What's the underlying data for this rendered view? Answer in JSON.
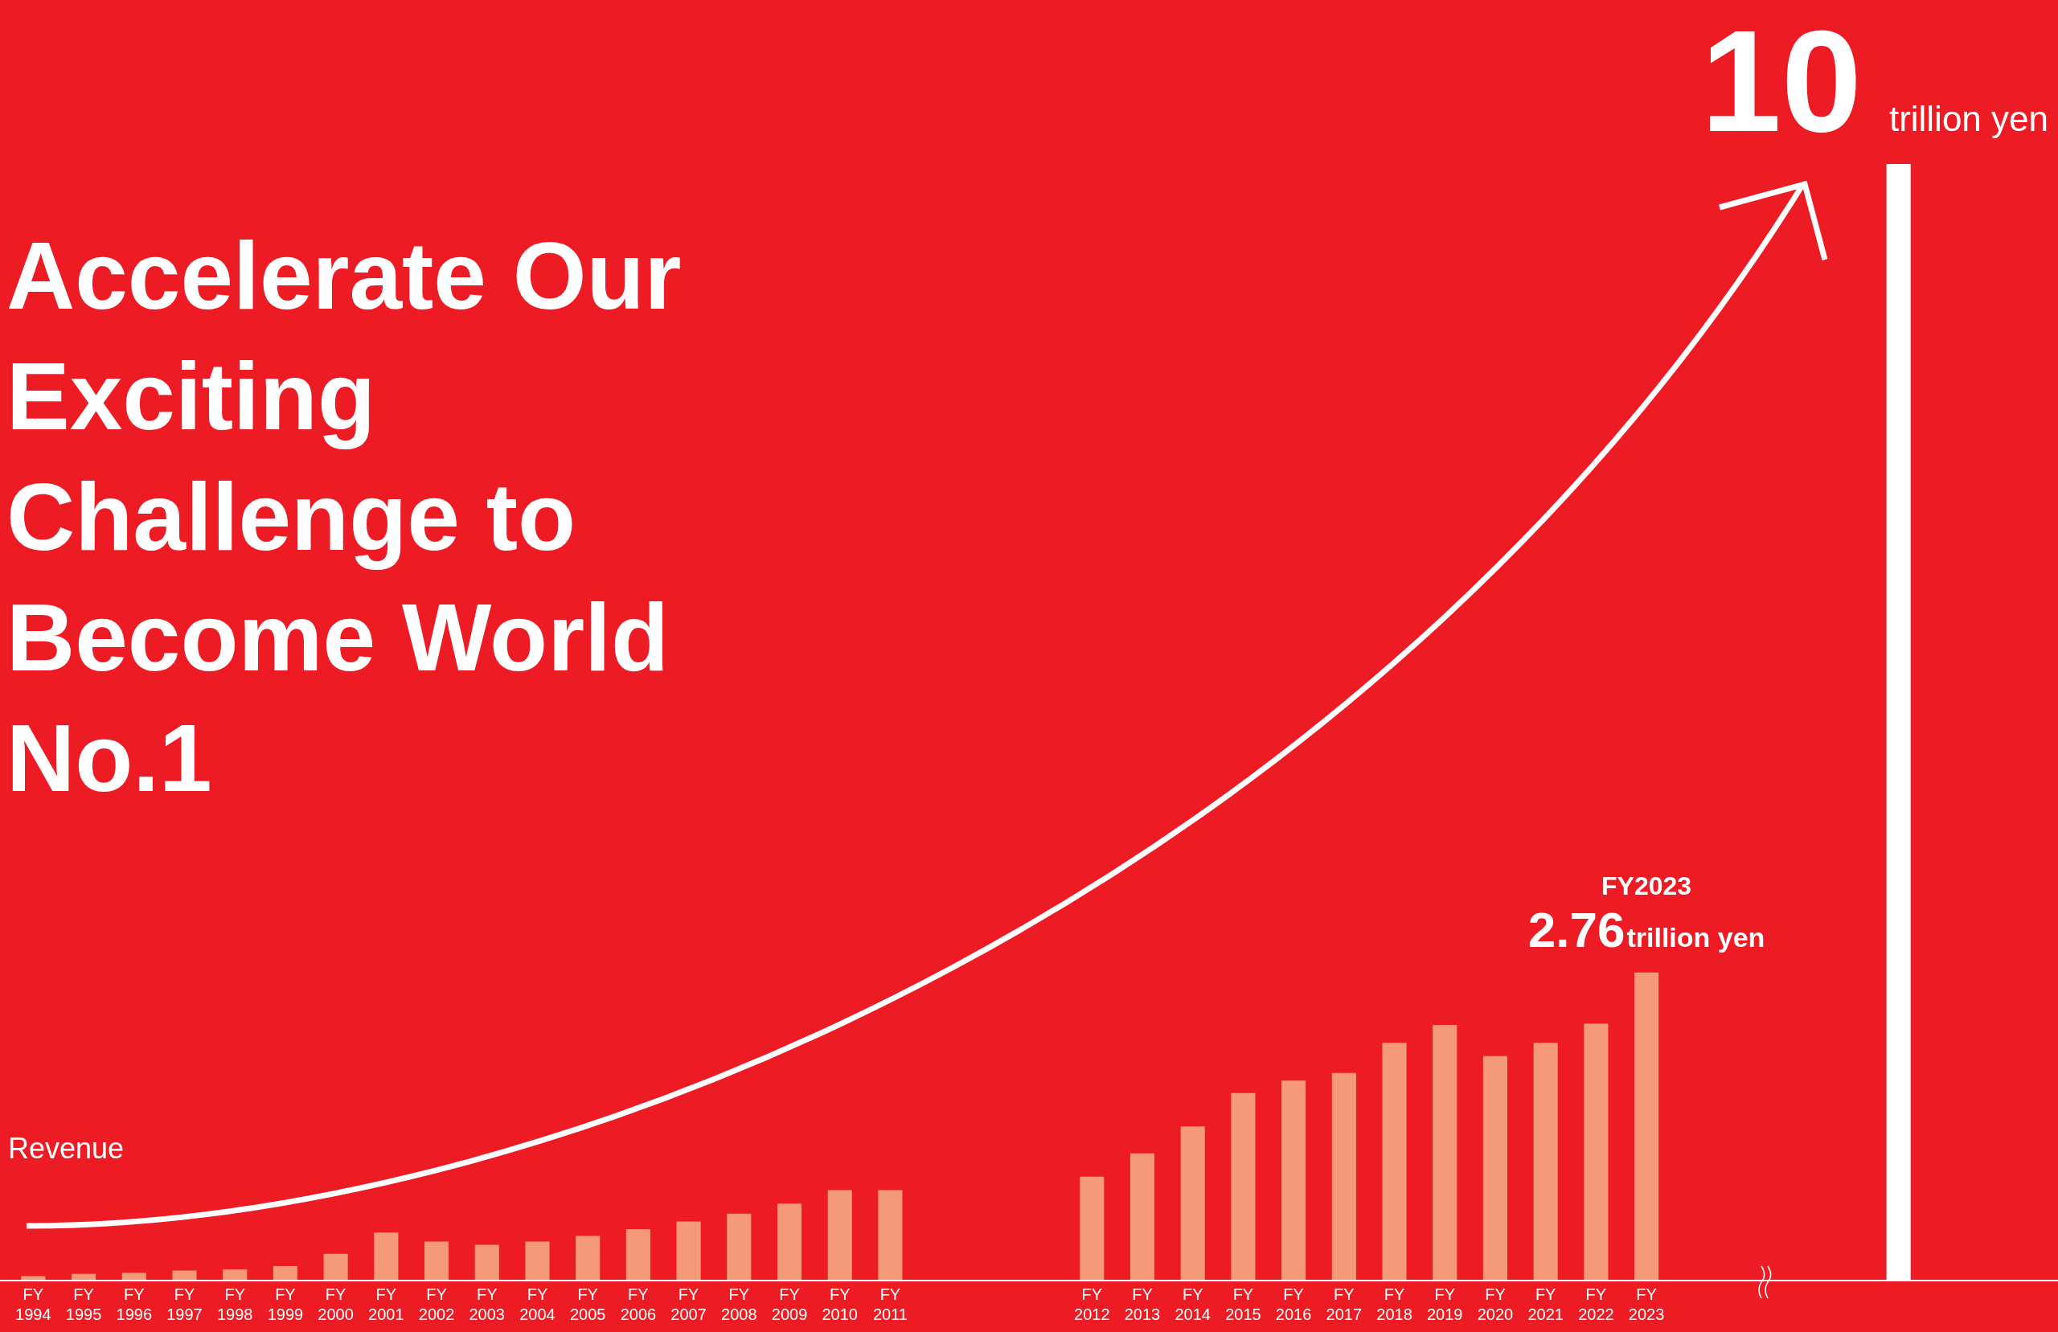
{
  "chart_data": {
    "type": "bar",
    "title": "Accelerate Our Exciting Challenge to Become World No.1",
    "ylabel": "Revenue",
    "categories": [
      "FY 1994",
      "FY 1995",
      "FY 1996",
      "FY 1997",
      "FY 1998",
      "FY 1999",
      "FY 2000",
      "FY 2001",
      "FY 2002",
      "FY 2003",
      "FY 2004",
      "FY 2005",
      "FY 2006",
      "FY 2007",
      "FY 2008",
      "FY 2009",
      "FY 2010",
      "FY 2011",
      null,
      null,
      null,
      "FY 2012",
      "FY 2013",
      "FY 2014",
      "FY 2015",
      "FY 2016",
      "FY 2017",
      "FY 2018",
      "FY 2019",
      "FY 2020",
      "FY 2021",
      "FY 2022",
      "FY 2023",
      null,
      null,
      null,
      null,
      null
    ],
    "values": [
      0.04,
      0.06,
      0.07,
      0.09,
      0.1,
      0.13,
      0.24,
      0.43,
      0.35,
      0.32,
      0.35,
      0.4,
      0.46,
      0.53,
      0.6,
      0.69,
      0.81,
      0.81,
      null,
      null,
      null,
      0.93,
      1.14,
      1.38,
      1.68,
      1.79,
      1.86,
      2.13,
      2.29,
      2.01,
      2.13,
      2.3,
      2.76,
      null,
      null,
      null,
      null,
      10
    ],
    "colors": [
      "#f4997a",
      "#f4997a",
      "#f4997a",
      "#f4997a",
      "#f4997a",
      "#f4997a",
      "#f4997a",
      "#f4997a",
      "#f4997a",
      "#f4997a",
      "#f4997a",
      "#f4997a",
      "#f4997a",
      "#f4997a",
      "#f4997a",
      "#f4997a",
      "#f4997a",
      "#f4997a",
      null,
      null,
      null,
      "#f4997a",
      "#f4997a",
      "#f4997a",
      "#f4997a",
      "#f4997a",
      "#f4997a",
      "#f4997a",
      "#f4997a",
      "#f4997a",
      "#f4997a",
      "#f4997a",
      "#f4997a",
      null,
      null,
      null,
      null,
      "#ffffff"
    ],
    "value_labels": [
      null,
      null,
      null,
      null,
      null,
      null,
      null,
      null,
      null,
      null,
      null,
      null,
      null,
      null,
      null,
      null,
      null,
      null,
      null,
      null,
      null,
      null,
      null,
      null,
      null,
      null,
      null,
      null,
      null,
      null,
      null,
      null,
      "2.76trillion yen",
      null,
      null,
      null,
      null,
      "10 trillion yen"
    ],
    "annotations": [
      {
        "text": "FY2023",
        "x": "FY 2023",
        "y": 2.76
      }
    ],
    "ylim": [
      0,
      10
    ],
    "tick_labels": "x"
  }
}
